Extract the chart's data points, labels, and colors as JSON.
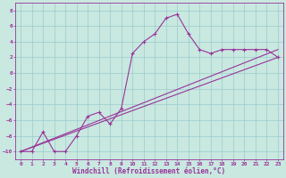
{
  "xlabel": "Windchill (Refroidissement éolien,°C)",
  "ylabel": "",
  "xlim": [
    -0.5,
    23.5
  ],
  "ylim": [
    -11,
    9
  ],
  "xticks": [
    0,
    1,
    2,
    3,
    4,
    5,
    6,
    7,
    8,
    9,
    10,
    11,
    12,
    13,
    14,
    15,
    16,
    17,
    18,
    19,
    20,
    21,
    22,
    23
  ],
  "yticks": [
    -10,
    -8,
    -6,
    -4,
    -2,
    0,
    2,
    4,
    6,
    8
  ],
  "bg_color": "#c8e8e0",
  "grid_color": "#99cccc",
  "line_color": "#993399",
  "curve_x": [
    0,
    1,
    2,
    3,
    4,
    5,
    6,
    7,
    8,
    9,
    10,
    11,
    12,
    13,
    14,
    15,
    16,
    17,
    18,
    19,
    20,
    21,
    22,
    23
  ],
  "curve_y": [
    -10,
    -10,
    -7.5,
    -10,
    -10,
    -8,
    -5.5,
    -5,
    -6.5,
    -4.5,
    2.5,
    4,
    5,
    7,
    7.5,
    5,
    3,
    2.5,
    3,
    3,
    3,
    3,
    3,
    2
  ],
  "line1_x": [
    0,
    23
  ],
  "line1_y": [
    -10,
    2
  ],
  "line2_x": [
    0,
    23
  ],
  "line2_y": [
    -10,
    3
  ],
  "tick_fontsize": 4.5,
  "xlabel_fontsize": 5.5
}
